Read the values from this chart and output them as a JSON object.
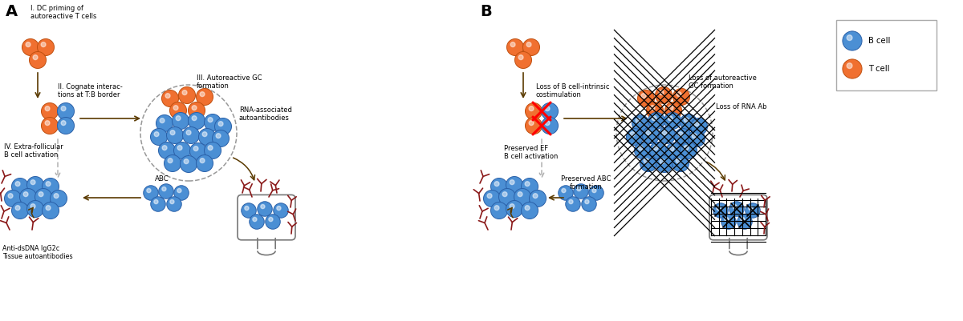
{
  "fig_width": 12.0,
  "fig_height": 4.01,
  "bg_color": "#ffffff",
  "b_cell_color": "#4b8fd4",
  "b_cell_edge": "#2a60a8",
  "t_cell_color": "#f07030",
  "t_cell_edge": "#c05010",
  "antibody_color": "#8b1a1a",
  "arrow_color": "#5a3a00",
  "dashed_color": "#999999",
  "panel_A_label": "A",
  "panel_B_label": "B",
  "label_I": "I. DC priming of\nautoreactive T cells",
  "label_II": "II. Cognate interac-\ntions at T:B border",
  "label_III": "III. Autoreactive GC\nformation",
  "label_IV": "IV. Extra-follicular\nB cell activation",
  "label_ABC": "ABC",
  "label_RNA": "RNA-associated\nautoantibodies",
  "label_antiDNA": "Anti-dsDNA IgG2c\nTissue autoantibodies",
  "label_B_loss_costim": "Loss of B cell-intrinsic\ncostimulation",
  "label_preserved_EF": "Preserved EF\nB cell activation",
  "label_loss_GC": "Loss of autoreactive\nGC formation",
  "label_loss_RNA": "Loss of RNA Ab",
  "label_preserved_ABC": "Preserved ABC\nformation",
  "legend_B": "B cell",
  "legend_T": "T cell"
}
